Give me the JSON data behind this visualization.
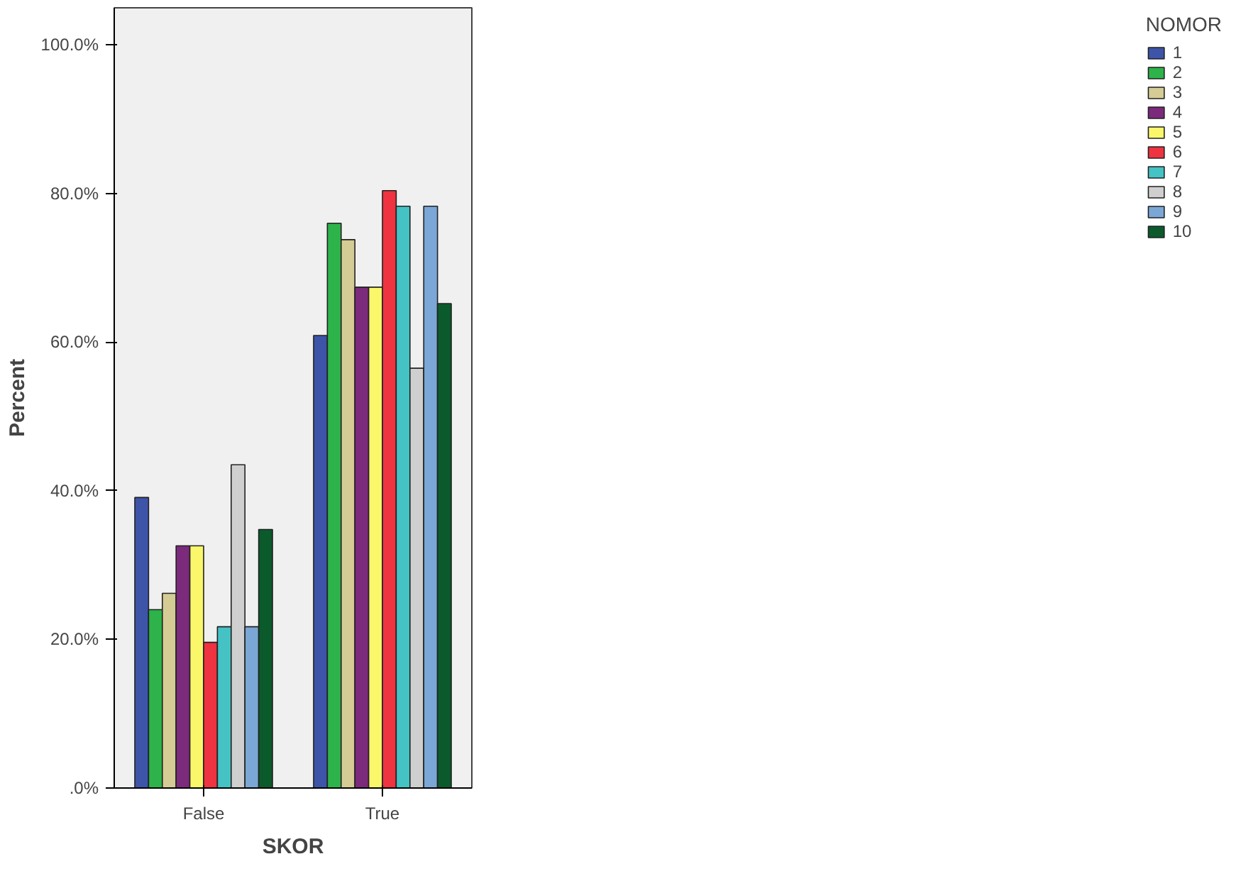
{
  "chart_data": {
    "type": "bar",
    "xlabel": "SKOR",
    "ylabel": "Percent",
    "legend_title": "NOMOR",
    "categories": [
      "False",
      "True"
    ],
    "series": [
      {
        "name": "1",
        "color": "#3d54a8",
        "values": [
          39.1,
          60.9
        ]
      },
      {
        "name": "2",
        "color": "#2db34a",
        "values": [
          24.0,
          76.0
        ]
      },
      {
        "name": "3",
        "color": "#d4cc94",
        "values": [
          26.2,
          73.8
        ]
      },
      {
        "name": "4",
        "color": "#7c2a7c",
        "values": [
          32.6,
          67.4
        ]
      },
      {
        "name": "5",
        "color": "#fbf76b",
        "values": [
          32.6,
          67.4
        ]
      },
      {
        "name": "6",
        "color": "#ef3340",
        "values": [
          19.6,
          80.4
        ]
      },
      {
        "name": "7",
        "color": "#44c2c4",
        "values": [
          21.7,
          78.3
        ]
      },
      {
        "name": "8",
        "color": "#cfcfcf",
        "values": [
          43.5,
          56.5
        ]
      },
      {
        "name": "9",
        "color": "#7aa7d6",
        "values": [
          21.7,
          78.3
        ]
      },
      {
        "name": "10",
        "color": "#0b5a2c",
        "values": [
          34.8,
          65.2
        ]
      }
    ],
    "ylim": [
      0,
      105
    ],
    "yticks": [
      {
        "value": 0,
        "label": ".0%"
      },
      {
        "value": 20,
        "label": "20.0%"
      },
      {
        "value": 40,
        "label": "40.0%"
      },
      {
        "value": 60,
        "label": "60.0%"
      },
      {
        "value": 80,
        "label": "80.0%"
      },
      {
        "value": 100,
        "label": "100.0%"
      }
    ],
    "grid": false,
    "legend": "right"
  }
}
